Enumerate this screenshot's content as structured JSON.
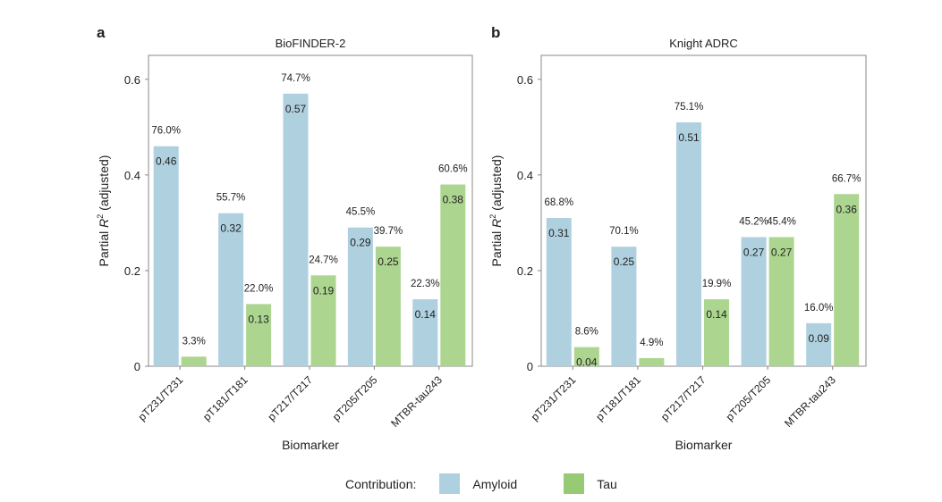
{
  "colors": {
    "amyloid": "#afd0df",
    "tau": "#acd58f",
    "legend_tau": "#96ca75"
  },
  "legend": {
    "title": "Contribution:",
    "items": [
      "Amyloid",
      "Tau"
    ]
  },
  "chart_data": [
    {
      "type": "bar",
      "panel": "a",
      "title": "BioFINDER-2",
      "xlabel": "Biomarker",
      "ylabel": "Partial R² (adjusted)",
      "ylabel_parts": [
        "Partial ",
        "R",
        "2",
        " (adjusted)"
      ],
      "ylim": [
        0,
        0.65
      ],
      "yticks": [
        0,
        0.2,
        0.4,
        0.6
      ],
      "ytick_labels": [
        "0",
        "0.2",
        "0.4",
        "0.6"
      ],
      "categories": [
        "pT231/T231",
        "pT181/T181",
        "pT217/T217",
        "pT205/T205",
        "MTBR-tau243"
      ],
      "series": [
        {
          "name": "Amyloid",
          "values": [
            0.46,
            0.32,
            0.57,
            0.29,
            0.14
          ],
          "value_labels": [
            "0.46",
            "0.32",
            "0.57",
            "0.29",
            "0.14"
          ],
          "pct_labels": [
            "76.0%",
            "55.7%",
            "74.7%",
            "45.5%",
            "22.3%"
          ]
        },
        {
          "name": "Tau",
          "values": [
            0.02,
            0.13,
            0.19,
            0.25,
            0.38
          ],
          "value_labels": [
            "",
            "0.13",
            "0.19",
            "0.25",
            "0.38"
          ],
          "pct_labels": [
            "3.3%",
            "22.0%",
            "24.7%",
            "39.7%",
            "60.6%"
          ]
        }
      ]
    },
    {
      "type": "bar",
      "panel": "b",
      "title": "Knight ADRC",
      "xlabel": "Biomarker",
      "ylabel": "Partial R² (adjusted)",
      "ylabel_parts": [
        "Partial ",
        "R",
        "2",
        " (adjusted)"
      ],
      "ylim": [
        0,
        0.65
      ],
      "yticks": [
        0,
        0.2,
        0.4,
        0.6
      ],
      "ytick_labels": [
        "0",
        "0.2",
        "0.4",
        "0.6"
      ],
      "categories": [
        "pT231/T231",
        "pT181/T181",
        "pT217/T217",
        "pT205/T205",
        "MTBR-tau243"
      ],
      "series": [
        {
          "name": "Amyloid",
          "values": [
            0.31,
            0.25,
            0.51,
            0.27,
            0.09
          ],
          "value_labels": [
            "0.31",
            "0.25",
            "0.51",
            "0.27",
            "0.09"
          ],
          "pct_labels": [
            "68.8%",
            "70.1%",
            "75.1%",
            "45.2%",
            "16.0%"
          ]
        },
        {
          "name": "Tau",
          "values": [
            0.04,
            0.017,
            0.14,
            0.27,
            0.36
          ],
          "value_labels": [
            "0.04",
            "",
            "0.14",
            "0.27",
            "0.36"
          ],
          "pct_labels": [
            "8.6%",
            "4.9%",
            "19.9%",
            "45.4%",
            "66.7%"
          ]
        }
      ]
    }
  ]
}
